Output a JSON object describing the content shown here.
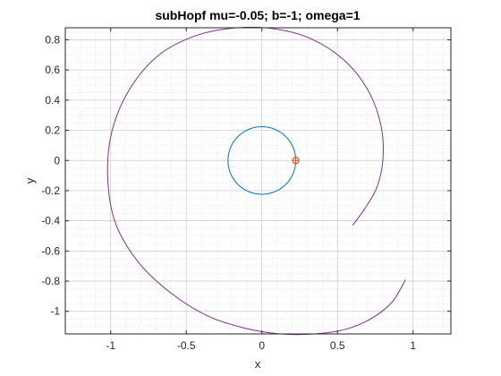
{
  "chart_data": {
    "type": "line",
    "title": "subHopf mu=-0.05; b=-1; omega=1",
    "xlabel": "x",
    "ylabel": "y",
    "xlim": [
      -1.3,
      1.25
    ],
    "ylim": [
      -1.15,
      0.88
    ],
    "xticks": [
      -1,
      -0.5,
      0,
      0.5,
      1
    ],
    "xtick_labels": [
      "-1",
      "-0.5",
      "0",
      "0.5",
      "1"
    ],
    "yticks": [
      -1,
      -0.8,
      -0.6,
      -0.4,
      -0.2,
      0,
      0.2,
      0.4,
      0.6,
      0.8
    ],
    "ytick_labels": [
      "-1",
      "-0.8",
      "-0.6",
      "-0.4",
      "-0.2",
      "0",
      "0.2",
      "0.4",
      "0.6",
      "0.8"
    ],
    "grid": true,
    "minor_grid": true,
    "series": [
      {
        "kind": "circle",
        "color": "#0072BD",
        "center": [
          0,
          0
        ],
        "radius": 0.224
      },
      {
        "kind": "spiral",
        "color": "#7E2F8E",
        "points": [
          [
            0.95,
            -0.79
          ],
          [
            0.86,
            -0.94
          ],
          [
            0.72,
            -1.05
          ],
          [
            0.55,
            -1.12
          ],
          [
            0.35,
            -1.15
          ],
          [
            0.12,
            -1.15
          ],
          [
            -0.12,
            -1.11
          ],
          [
            -0.36,
            -1.03
          ],
          [
            -0.6,
            -0.88
          ],
          [
            -0.82,
            -0.67
          ],
          [
            -0.97,
            -0.41
          ],
          [
            -1.02,
            -0.1
          ],
          [
            -0.99,
            0.2
          ],
          [
            -0.87,
            0.48
          ],
          [
            -0.68,
            0.7
          ],
          [
            -0.43,
            0.83
          ],
          [
            -0.16,
            0.88
          ],
          [
            0.1,
            0.87
          ],
          [
            0.34,
            0.8
          ],
          [
            0.56,
            0.65
          ],
          [
            0.71,
            0.45
          ],
          [
            0.79,
            0.22
          ],
          [
            0.8,
            0.0
          ],
          [
            0.76,
            -0.18
          ],
          [
            0.68,
            -0.32
          ],
          [
            0.6,
            -0.43
          ]
        ]
      },
      {
        "kind": "marker",
        "color": "#D95319",
        "points": [
          [
            0.224,
            0
          ]
        ]
      }
    ]
  }
}
